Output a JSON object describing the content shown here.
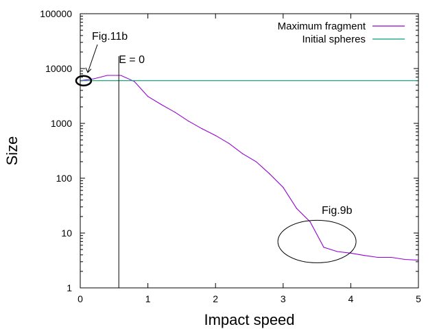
{
  "chart_data": {
    "type": "line",
    "xlabel": "Impact speed",
    "ylabel": "Size",
    "xlim": [
      0,
      5
    ],
    "ylim": [
      1,
      100000
    ],
    "yscale": "log",
    "grid": false,
    "legend_position": "top-right",
    "x_ticks": [
      0,
      1,
      2,
      3,
      4,
      5
    ],
    "x_tick_labels": [
      "0",
      "1",
      "2",
      "3",
      "4",
      "5"
    ],
    "y_ticks": [
      1,
      10,
      100,
      1000,
      10000,
      100000
    ],
    "y_tick_labels": [
      "1",
      "10",
      "100",
      "1000",
      "10000",
      "100000"
    ],
    "series": [
      {
        "name": "Maximum fragment",
        "color": "#9400d3",
        "x": [
          0.0,
          0.2,
          0.4,
          0.6,
          0.8,
          1.0,
          1.2,
          1.4,
          1.6,
          1.8,
          2.0,
          2.2,
          2.4,
          2.6,
          2.8,
          3.0,
          3.2,
          3.4,
          3.6,
          3.8,
          4.0,
          4.2,
          4.4,
          4.6,
          4.8,
          5.0
        ],
        "values": [
          6000,
          6500,
          7500,
          7500,
          5800,
          3100,
          2200,
          1600,
          1100,
          800,
          600,
          430,
          280,
          200,
          120,
          68,
          28,
          16,
          5.5,
          4.6,
          4.3,
          3.9,
          3.6,
          3.6,
          3.3,
          3.2
        ]
      },
      {
        "name": "Initial spheres",
        "color": "#009e73",
        "x": [
          0,
          5
        ],
        "values": [
          6000,
          6000
        ]
      }
    ],
    "vertical_line": {
      "x": 0.57,
      "label": "E = 0"
    },
    "annotations": [
      {
        "text": "Fig.11b",
        "x": 0.05,
        "y": 6000
      },
      {
        "text": "Fig.9b",
        "x": 3.5,
        "y": 7
      }
    ]
  }
}
